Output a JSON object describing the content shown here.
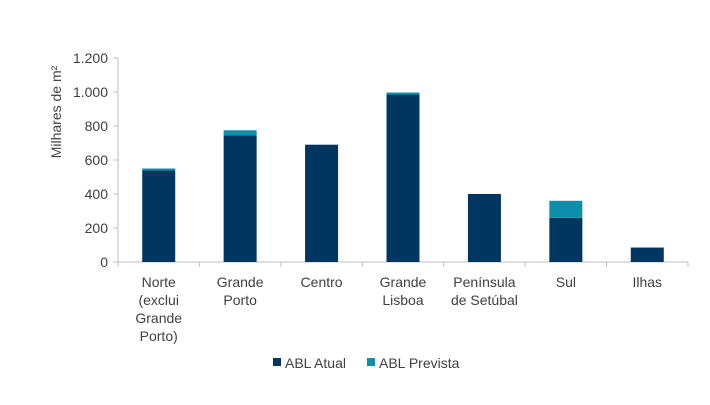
{
  "chart_data": {
    "type": "bar",
    "stacked": true,
    "title": "",
    "xlabel": "",
    "ylabel": "Milhares de m²",
    "ylim": [
      0,
      1200
    ],
    "yticks": [
      0,
      200,
      400,
      600,
      800,
      1000,
      1200
    ],
    "ytick_labels": [
      "0",
      "200",
      "400",
      "600",
      "800",
      "1.000",
      "1.200"
    ],
    "categories": [
      [
        "Norte",
        "(exclui",
        "Grande",
        "Porto)"
      ],
      [
        "Grande",
        "Porto"
      ],
      [
        "Centro"
      ],
      [
        "Grande",
        "Lisboa"
      ],
      [
        "Península",
        "de Setúbal"
      ],
      [
        "Sul"
      ],
      [
        "Ilhas"
      ]
    ],
    "series": [
      {
        "name": "ABL Atual",
        "color": "#003660",
        "values": [
          540,
          745,
          690,
          985,
          400,
          260,
          85
        ]
      },
      {
        "name": "ABL Prevista",
        "color": "#0E8FA9",
        "values": [
          10,
          30,
          0,
          12,
          0,
          100,
          0
        ]
      }
    ],
    "grid": false,
    "legend": "bottom-center"
  }
}
